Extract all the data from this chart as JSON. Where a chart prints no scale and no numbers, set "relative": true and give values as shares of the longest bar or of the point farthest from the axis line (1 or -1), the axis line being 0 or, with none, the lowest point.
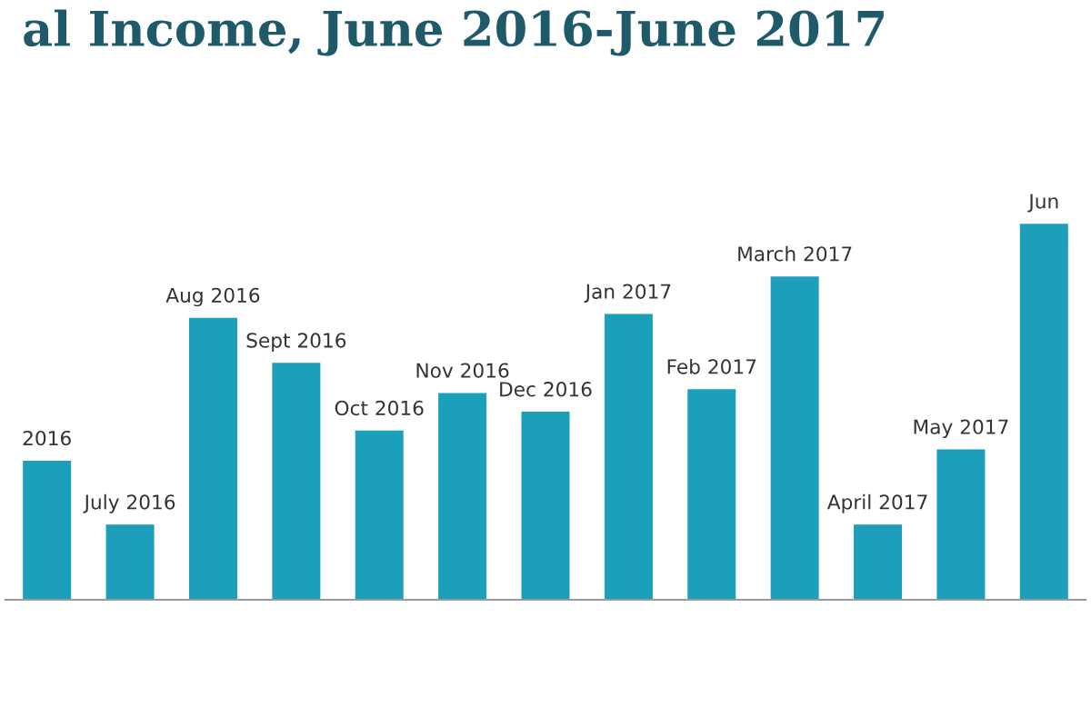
{
  "chart_data": {
    "type": "bar",
    "title": "al Income, June 2016-June 2017",
    "categories": [
      "2016",
      "July 2016",
      "Aug 2016",
      "Sept 2016",
      "Oct 2016",
      "Nov 2016",
      "Dec 2016",
      "Jan 2017",
      "Feb 2017",
      "March 2017",
      "April 2017",
      "May 2017",
      "Jun"
    ],
    "values": [
      0.37,
      0.2,
      0.75,
      0.63,
      0.45,
      0.55,
      0.5,
      0.76,
      0.56,
      0.86,
      0.2,
      0.4,
      1
    ],
    "color": "#1b9fba",
    "relative": true
  }
}
